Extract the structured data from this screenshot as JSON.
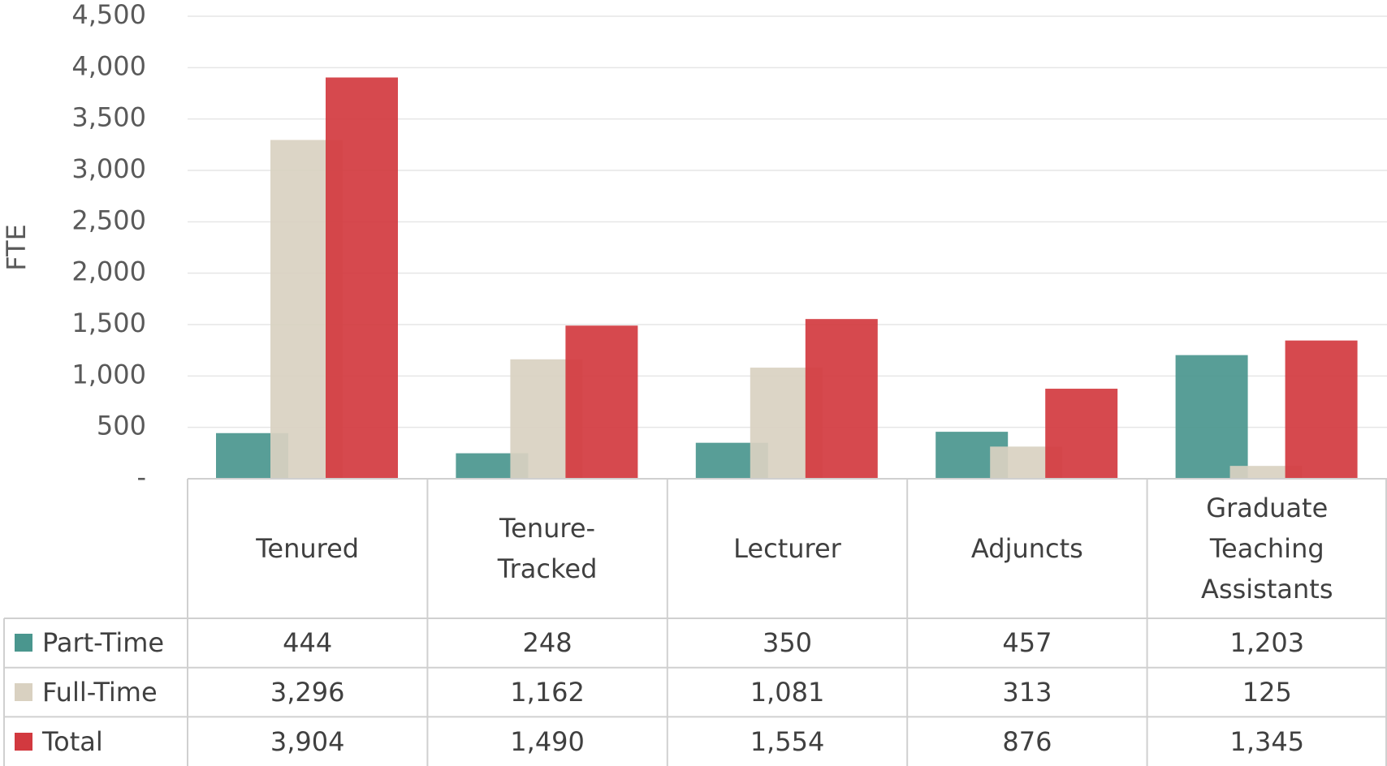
{
  "chart_data": {
    "type": "bar",
    "y_label": "FTE",
    "categories": [
      "Tenured",
      "Tenure-Tracked",
      "Lecturer",
      "Adjuncts",
      "Graduate Teaching Assistants"
    ],
    "series": [
      {
        "name": "Part-Time",
        "color": "#4a968e",
        "values": [
          444,
          248,
          350,
          457,
          1203
        ],
        "value_labels": [
          "444",
          "248",
          "350",
          "457",
          "1,203"
        ]
      },
      {
        "name": "Full-Time",
        "color": "#d9d1c1",
        "values": [
          3296,
          1162,
          1081,
          313,
          125
        ],
        "value_labels": [
          "3,296",
          "1,162",
          "1,081",
          "313",
          "125"
        ]
      },
      {
        "name": "Total",
        "color": "#d2393f",
        "values": [
          3904,
          1490,
          1554,
          876,
          1345
        ],
        "value_labels": [
          "3,904",
          "1,490",
          "1,554",
          "876",
          "1,345"
        ]
      }
    ],
    "ylim": [
      0,
      4500
    ],
    "yticks": [
      {
        "value": 0,
        "label": "-"
      },
      500,
      {
        "value": 1000,
        "label": "1,000"
      },
      {
        "value": 1500,
        "label": "1,500"
      },
      {
        "value": 2000,
        "label": "2,000"
      },
      {
        "value": 2500,
        "label": "2,500"
      },
      {
        "value": 3000,
        "label": "3,000"
      },
      {
        "value": 3500,
        "label": "3,500"
      },
      {
        "value": 4000,
        "label": "4,000"
      },
      {
        "value": 4500,
        "label": "4,500"
      }
    ],
    "grid": true
  }
}
